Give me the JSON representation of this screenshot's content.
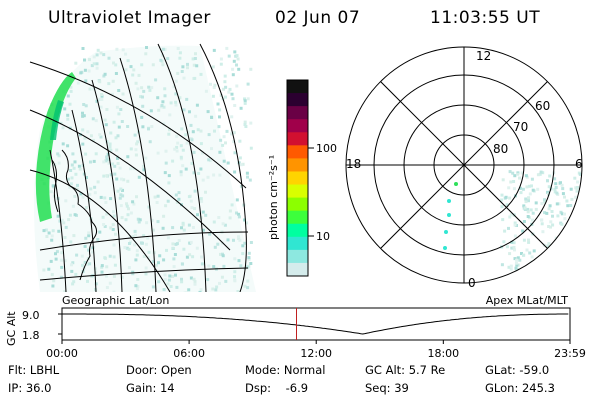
{
  "header": {
    "title": "Ultraviolet Imager",
    "date": "02 Jun 07",
    "time": "11:03:55 UT"
  },
  "colorbar": {
    "unit_label": "photon cm⁻²s⁻¹",
    "ticks": [
      "100",
      "10"
    ],
    "colors_top_to_bottom": [
      "#111111",
      "#2b0030",
      "#6a0045",
      "#a0004a",
      "#d21030",
      "#ff5a00",
      "#ff9400",
      "#ffd400",
      "#d9ff00",
      "#8cff00",
      "#3cff3c",
      "#00ffa0",
      "#30e6d2",
      "#8de8e0",
      "#d5ecec"
    ]
  },
  "polar_plot": {
    "mlt_labels": [
      "12",
      "18",
      "6",
      "0"
    ],
    "lat_labels": [
      "60",
      "70",
      "80"
    ]
  },
  "timeline": {
    "left_title": "Geographic Lat/Lon",
    "right_title": "Apex MLat/MLT",
    "y_axis_label": "GC Alt",
    "y_ticks": [
      "9.0",
      "1.8"
    ],
    "x_ticks": [
      "00:00",
      "06:00",
      "12:00",
      "18:00",
      "23:59"
    ],
    "current_marker_hours": 11.07,
    "altitude_curve": {
      "min_hour": 14.2,
      "min_value": 1.8,
      "max_value": 9.0,
      "range": [
        0,
        23.98
      ]
    }
  },
  "info": {
    "row1": [
      "Flt: LBHL",
      "Door: Open",
      "Mode: Normal",
      "GC Alt: 5.7 Re",
      "GLat: -59.0"
    ],
    "row2": [
      "IP: 36.0",
      "Gain: 14",
      "Dsp:    -6.9",
      "Seq: 39",
      "GLon: 245.3"
    ]
  },
  "colors": {
    "background": "#ffffff",
    "lines": "#000000",
    "marker": "#c02020",
    "aurora_green": "#2ee05a",
    "noise_cyan": "#b8e8e0"
  }
}
